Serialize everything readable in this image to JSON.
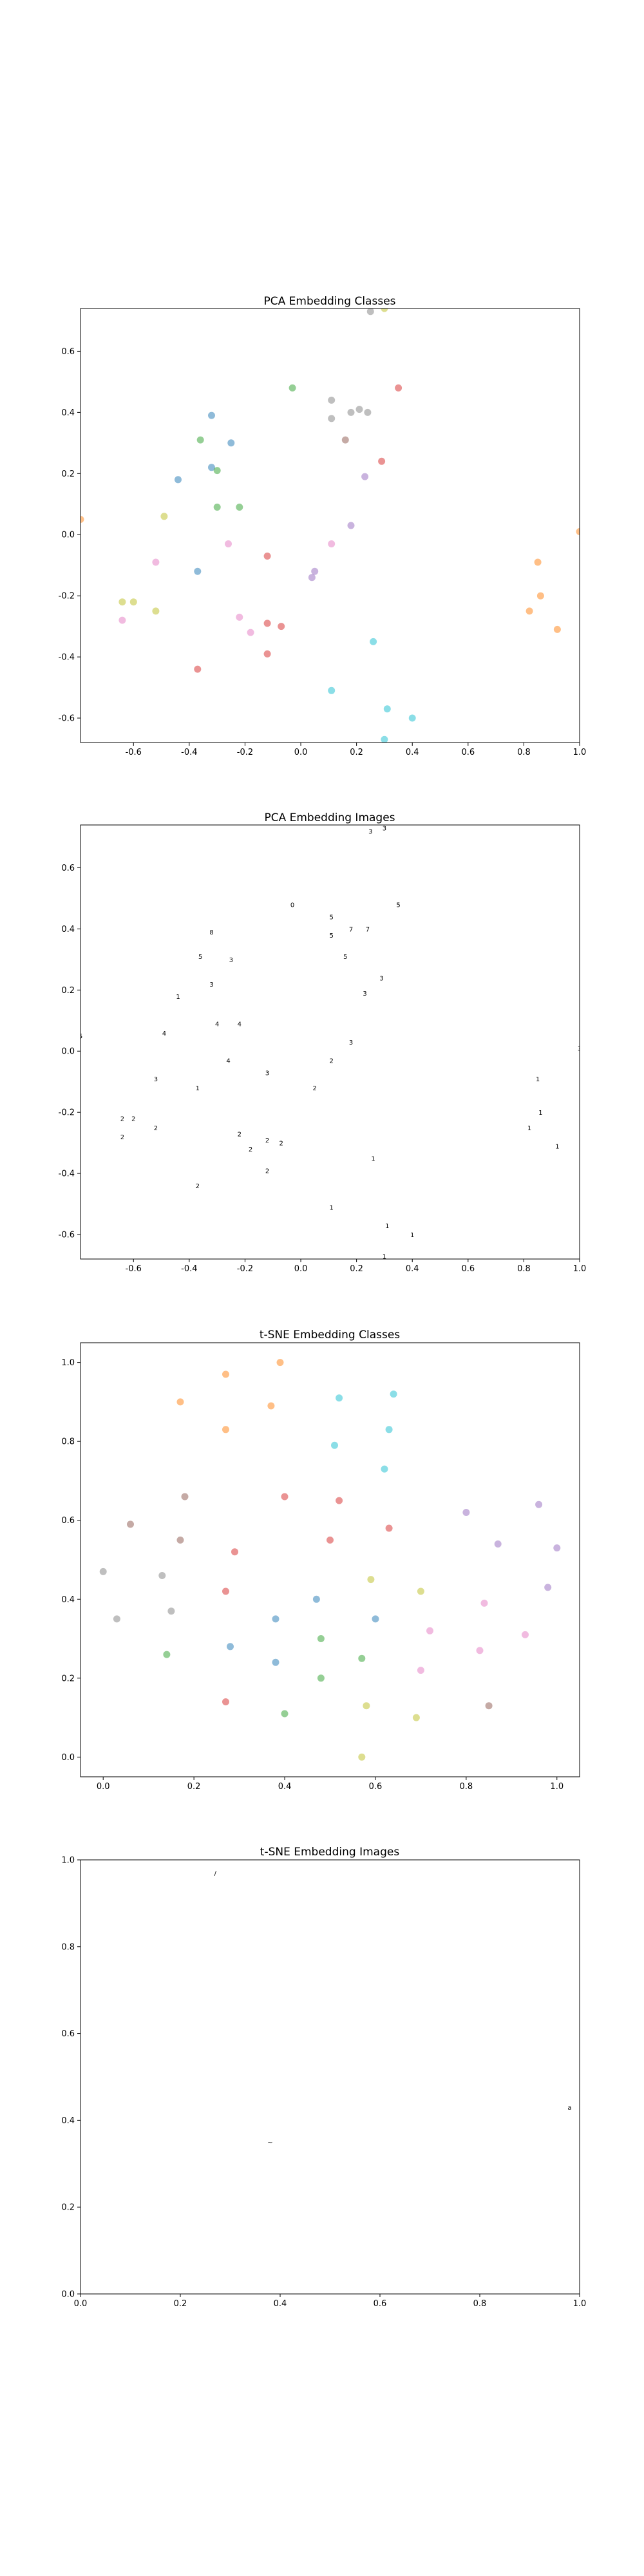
{
  "colors": {
    "blue": "#1f77b4",
    "orange": "#ff7f0e",
    "green": "#2ca02c",
    "red": "#d62728",
    "purple": "#9467bd",
    "brown": "#8c564b",
    "pink": "#e377c2",
    "gray": "#7f7f7f",
    "olive": "#bcbd22",
    "cyan": "#17becf"
  },
  "chart_data": [
    {
      "type": "scatter",
      "title": "PCA Embedding Classes",
      "xlabel": "",
      "ylabel": "",
      "xlim": [
        -0.79,
        1.0
      ],
      "ylim": [
        -0.68,
        0.74
      ],
      "xticks": [
        "-0.6",
        "-0.4",
        "-0.2",
        "0.0",
        "0.2",
        "0.4",
        "0.6",
        "0.8",
        "1.0"
      ],
      "yticks": [
        "-0.6",
        "-0.4",
        "-0.2",
        "0.0",
        "0.2",
        "0.4",
        "0.6"
      ],
      "grid": false,
      "marker": "dot",
      "alpha": 0.5,
      "points": [
        {
          "x": 0.25,
          "y": 0.73,
          "c": "gray"
        },
        {
          "x": 0.3,
          "y": 0.74,
          "c": "olive"
        },
        {
          "x": -0.03,
          "y": 0.48,
          "c": "green"
        },
        {
          "x": 0.35,
          "y": 0.48,
          "c": "red"
        },
        {
          "x": 0.11,
          "y": 0.44,
          "c": "gray"
        },
        {
          "x": -0.32,
          "y": 0.39,
          "c": "blue"
        },
        {
          "x": 0.11,
          "y": 0.38,
          "c": "gray"
        },
        {
          "x": 0.18,
          "y": 0.4,
          "c": "gray"
        },
        {
          "x": 0.21,
          "y": 0.41,
          "c": "gray"
        },
        {
          "x": 0.24,
          "y": 0.4,
          "c": "gray"
        },
        {
          "x": -0.36,
          "y": 0.31,
          "c": "green"
        },
        {
          "x": 0.16,
          "y": 0.31,
          "c": "brown"
        },
        {
          "x": -0.25,
          "y": 0.3,
          "c": "blue"
        },
        {
          "x": 0.29,
          "y": 0.24,
          "c": "red"
        },
        {
          "x": -0.32,
          "y": 0.22,
          "c": "blue"
        },
        {
          "x": -0.3,
          "y": 0.21,
          "c": "green"
        },
        {
          "x": 0.23,
          "y": 0.19,
          "c": "purple"
        },
        {
          "x": -0.44,
          "y": 0.18,
          "c": "blue"
        },
        {
          "x": -0.3,
          "y": 0.09,
          "c": "green"
        },
        {
          "x": -0.22,
          "y": 0.09,
          "c": "green"
        },
        {
          "x": -0.49,
          "y": 0.06,
          "c": "olive"
        },
        {
          "x": -0.79,
          "y": 0.05,
          "c": "orange"
        },
        {
          "x": 1.0,
          "y": 0.01,
          "c": "orange"
        },
        {
          "x": 0.18,
          "y": 0.03,
          "c": "purple"
        },
        {
          "x": -0.26,
          "y": -0.03,
          "c": "pink"
        },
        {
          "x": 0.11,
          "y": -0.03,
          "c": "pink"
        },
        {
          "x": -0.12,
          "y": -0.07,
          "c": "red"
        },
        {
          "x": -0.52,
          "y": -0.09,
          "c": "pink"
        },
        {
          "x": 0.85,
          "y": -0.09,
          "c": "orange"
        },
        {
          "x": -0.37,
          "y": -0.12,
          "c": "blue"
        },
        {
          "x": 0.05,
          "y": -0.12,
          "c": "purple"
        },
        {
          "x": 0.04,
          "y": -0.14,
          "c": "purple"
        },
        {
          "x": -0.64,
          "y": -0.22,
          "c": "olive"
        },
        {
          "x": -0.6,
          "y": -0.22,
          "c": "olive"
        },
        {
          "x": 0.86,
          "y": -0.2,
          "c": "orange"
        },
        {
          "x": -0.52,
          "y": -0.25,
          "c": "olive"
        },
        {
          "x": 0.82,
          "y": -0.25,
          "c": "orange"
        },
        {
          "x": -0.22,
          "y": -0.27,
          "c": "pink"
        },
        {
          "x": -0.64,
          "y": -0.28,
          "c": "pink"
        },
        {
          "x": -0.12,
          "y": -0.29,
          "c": "red"
        },
        {
          "x": -0.07,
          "y": -0.3,
          "c": "red"
        },
        {
          "x": -0.18,
          "y": -0.32,
          "c": "pink"
        },
        {
          "x": 0.92,
          "y": -0.31,
          "c": "orange"
        },
        {
          "x": 0.26,
          "y": -0.35,
          "c": "cyan"
        },
        {
          "x": -0.12,
          "y": -0.39,
          "c": "red"
        },
        {
          "x": -0.37,
          "y": -0.44,
          "c": "red"
        },
        {
          "x": 0.11,
          "y": -0.51,
          "c": "cyan"
        },
        {
          "x": 0.31,
          "y": -0.57,
          "c": "cyan"
        },
        {
          "x": 0.4,
          "y": -0.6,
          "c": "cyan"
        },
        {
          "x": 0.3,
          "y": -0.67,
          "c": "cyan"
        }
      ]
    },
    {
      "type": "scatter",
      "title": "PCA Embedding Images",
      "xlabel": "",
      "ylabel": "",
      "xlim": [
        -0.79,
        1.0
      ],
      "ylim": [
        -0.68,
        0.74
      ],
      "xticks": [
        "-0.6",
        "-0.4",
        "-0.2",
        "0.0",
        "0.2",
        "0.4",
        "0.6",
        "0.8",
        "1.0"
      ],
      "yticks": [
        "-0.6",
        "-0.4",
        "-0.2",
        "0.0",
        "0.2",
        "0.4",
        "0.6"
      ],
      "grid": false,
      "marker": "digit-glyph",
      "points": [
        {
          "x": 0.25,
          "y": 0.72,
          "glyph": "3"
        },
        {
          "x": 0.3,
          "y": 0.73,
          "glyph": "3"
        },
        {
          "x": -0.03,
          "y": 0.48,
          "glyph": "0"
        },
        {
          "x": 0.35,
          "y": 0.48,
          "glyph": "5"
        },
        {
          "x": 0.11,
          "y": 0.44,
          "glyph": "5"
        },
        {
          "x": -0.32,
          "y": 0.39,
          "glyph": "8"
        },
        {
          "x": 0.11,
          "y": 0.38,
          "glyph": "5"
        },
        {
          "x": 0.18,
          "y": 0.4,
          "glyph": "7"
        },
        {
          "x": 0.24,
          "y": 0.4,
          "glyph": "7"
        },
        {
          "x": -0.36,
          "y": 0.31,
          "glyph": "5"
        },
        {
          "x": 0.16,
          "y": 0.31,
          "glyph": "5"
        },
        {
          "x": -0.25,
          "y": 0.3,
          "glyph": "3"
        },
        {
          "x": 0.29,
          "y": 0.24,
          "glyph": "3"
        },
        {
          "x": -0.32,
          "y": 0.22,
          "glyph": "3"
        },
        {
          "x": 0.23,
          "y": 0.19,
          "glyph": "3"
        },
        {
          "x": -0.44,
          "y": 0.18,
          "glyph": "1"
        },
        {
          "x": -0.3,
          "y": 0.09,
          "glyph": "4"
        },
        {
          "x": -0.22,
          "y": 0.09,
          "glyph": "4"
        },
        {
          "x": -0.49,
          "y": 0.06,
          "glyph": "4"
        },
        {
          "x": -0.79,
          "y": 0.05,
          "glyph": "5"
        },
        {
          "x": 1.0,
          "y": 0.01,
          "glyph": "3"
        },
        {
          "x": 0.18,
          "y": 0.03,
          "glyph": "3"
        },
        {
          "x": -0.26,
          "y": -0.03,
          "glyph": "4"
        },
        {
          "x": 0.11,
          "y": -0.03,
          "glyph": "2"
        },
        {
          "x": -0.12,
          "y": -0.07,
          "glyph": "3"
        },
        {
          "x": -0.52,
          "y": -0.09,
          "glyph": "3"
        },
        {
          "x": 0.85,
          "y": -0.09,
          "glyph": "1"
        },
        {
          "x": -0.37,
          "y": -0.12,
          "glyph": "1"
        },
        {
          "x": 0.05,
          "y": -0.12,
          "glyph": "2"
        },
        {
          "x": -0.64,
          "y": -0.22,
          "glyph": "2"
        },
        {
          "x": -0.6,
          "y": -0.22,
          "glyph": "2"
        },
        {
          "x": 0.86,
          "y": -0.2,
          "glyph": "1"
        },
        {
          "x": -0.52,
          "y": -0.25,
          "glyph": "2"
        },
        {
          "x": 0.82,
          "y": -0.25,
          "glyph": "1"
        },
        {
          "x": -0.22,
          "y": -0.27,
          "glyph": "2"
        },
        {
          "x": -0.64,
          "y": -0.28,
          "glyph": "2"
        },
        {
          "x": -0.12,
          "y": -0.29,
          "glyph": "2"
        },
        {
          "x": -0.07,
          "y": -0.3,
          "glyph": "2"
        },
        {
          "x": -0.18,
          "y": -0.32,
          "glyph": "2"
        },
        {
          "x": 0.92,
          "y": -0.31,
          "glyph": "1"
        },
        {
          "x": 0.26,
          "y": -0.35,
          "glyph": "1"
        },
        {
          "x": -0.12,
          "y": -0.39,
          "glyph": "2"
        },
        {
          "x": -0.37,
          "y": -0.44,
          "glyph": "2"
        },
        {
          "x": 0.11,
          "y": -0.51,
          "glyph": "1"
        },
        {
          "x": 0.31,
          "y": -0.57,
          "glyph": "1"
        },
        {
          "x": 0.4,
          "y": -0.6,
          "glyph": "1"
        },
        {
          "x": 0.3,
          "y": -0.67,
          "glyph": "1"
        }
      ]
    },
    {
      "type": "scatter",
      "title": "t-SNE Embedding Classes",
      "xlabel": "",
      "ylabel": "",
      "xlim": [
        -0.05,
        1.05
      ],
      "ylim": [
        -0.05,
        1.05
      ],
      "xticks": [
        "0.0",
        "0.2",
        "0.4",
        "0.6",
        "0.8",
        "1.0"
      ],
      "yticks": [
        "0.0",
        "0.2",
        "0.4",
        "0.6",
        "0.8",
        "1.0"
      ],
      "grid": false,
      "marker": "dot",
      "alpha": 0.5,
      "points": [
        {
          "x": 0.39,
          "y": 1.0,
          "c": "orange"
        },
        {
          "x": 0.27,
          "y": 0.97,
          "c": "orange"
        },
        {
          "x": 0.64,
          "y": 0.92,
          "c": "cyan"
        },
        {
          "x": 0.52,
          "y": 0.91,
          "c": "cyan"
        },
        {
          "x": 0.17,
          "y": 0.9,
          "c": "orange"
        },
        {
          "x": 0.37,
          "y": 0.89,
          "c": "orange"
        },
        {
          "x": 0.27,
          "y": 0.83,
          "c": "orange"
        },
        {
          "x": 0.63,
          "y": 0.83,
          "c": "cyan"
        },
        {
          "x": 0.51,
          "y": 0.79,
          "c": "cyan"
        },
        {
          "x": 0.62,
          "y": 0.73,
          "c": "cyan"
        },
        {
          "x": 0.18,
          "y": 0.66,
          "c": "brown"
        },
        {
          "x": 0.4,
          "y": 0.66,
          "c": "red"
        },
        {
          "x": 0.52,
          "y": 0.65,
          "c": "red"
        },
        {
          "x": 0.8,
          "y": 0.62,
          "c": "purple"
        },
        {
          "x": 0.96,
          "y": 0.64,
          "c": "purple"
        },
        {
          "x": 0.06,
          "y": 0.59,
          "c": "brown"
        },
        {
          "x": 0.63,
          "y": 0.58,
          "c": "red"
        },
        {
          "x": 0.17,
          "y": 0.55,
          "c": "brown"
        },
        {
          "x": 0.5,
          "y": 0.55,
          "c": "red"
        },
        {
          "x": 0.29,
          "y": 0.52,
          "c": "red"
        },
        {
          "x": 0.87,
          "y": 0.54,
          "c": "purple"
        },
        {
          "x": 1.0,
          "y": 0.53,
          "c": "purple"
        },
        {
          "x": 0.0,
          "y": 0.47,
          "c": "gray"
        },
        {
          "x": 0.13,
          "y": 0.46,
          "c": "gray"
        },
        {
          "x": 0.59,
          "y": 0.45,
          "c": "olive"
        },
        {
          "x": 0.98,
          "y": 0.43,
          "c": "purple"
        },
        {
          "x": 0.7,
          "y": 0.42,
          "c": "olive"
        },
        {
          "x": 0.27,
          "y": 0.42,
          "c": "red"
        },
        {
          "x": 0.47,
          "y": 0.4,
          "c": "blue"
        },
        {
          "x": 0.84,
          "y": 0.39,
          "c": "pink"
        },
        {
          "x": 0.15,
          "y": 0.37,
          "c": "gray"
        },
        {
          "x": 0.03,
          "y": 0.35,
          "c": "gray"
        },
        {
          "x": 0.38,
          "y": 0.35,
          "c": "blue"
        },
        {
          "x": 0.6,
          "y": 0.35,
          "c": "blue"
        },
        {
          "x": 0.72,
          "y": 0.32,
          "c": "pink"
        },
        {
          "x": 0.93,
          "y": 0.31,
          "c": "pink"
        },
        {
          "x": 0.48,
          "y": 0.3,
          "c": "green"
        },
        {
          "x": 0.28,
          "y": 0.28,
          "c": "blue"
        },
        {
          "x": 0.83,
          "y": 0.27,
          "c": "pink"
        },
        {
          "x": 0.14,
          "y": 0.26,
          "c": "green"
        },
        {
          "x": 0.57,
          "y": 0.25,
          "c": "green"
        },
        {
          "x": 0.38,
          "y": 0.24,
          "c": "blue"
        },
        {
          "x": 0.7,
          "y": 0.22,
          "c": "pink"
        },
        {
          "x": 0.48,
          "y": 0.2,
          "c": "green"
        },
        {
          "x": 0.27,
          "y": 0.14,
          "c": "red"
        },
        {
          "x": 0.58,
          "y": 0.13,
          "c": "olive"
        },
        {
          "x": 0.85,
          "y": 0.13,
          "c": "brown"
        },
        {
          "x": 0.4,
          "y": 0.11,
          "c": "green"
        },
        {
          "x": 0.69,
          "y": 0.1,
          "c": "olive"
        },
        {
          "x": 0.57,
          "y": 0.0,
          "c": "olive"
        }
      ]
    },
    {
      "type": "scatter",
      "title": "t-SNE Embedding Images",
      "xlabel": "",
      "ylabel": "",
      "xlim": [
        0.0,
        1.0
      ],
      "ylim": [
        0.0,
        1.0
      ],
      "xticks": [
        "0.0",
        "0.2",
        "0.4",
        "0.6",
        "0.8",
        "1.0"
      ],
      "yticks": [
        "0.0",
        "0.2",
        "0.4",
        "0.6",
        "0.8",
        "1.0"
      ],
      "grid": false,
      "marker": "digit-glyph",
      "points": [
        {
          "x": 0.27,
          "y": 0.97,
          "glyph": "/"
        },
        {
          "x": 0.38,
          "y": 0.35,
          "glyph": "~"
        },
        {
          "x": 0.98,
          "y": 0.43,
          "glyph": "a"
        }
      ]
    }
  ]
}
